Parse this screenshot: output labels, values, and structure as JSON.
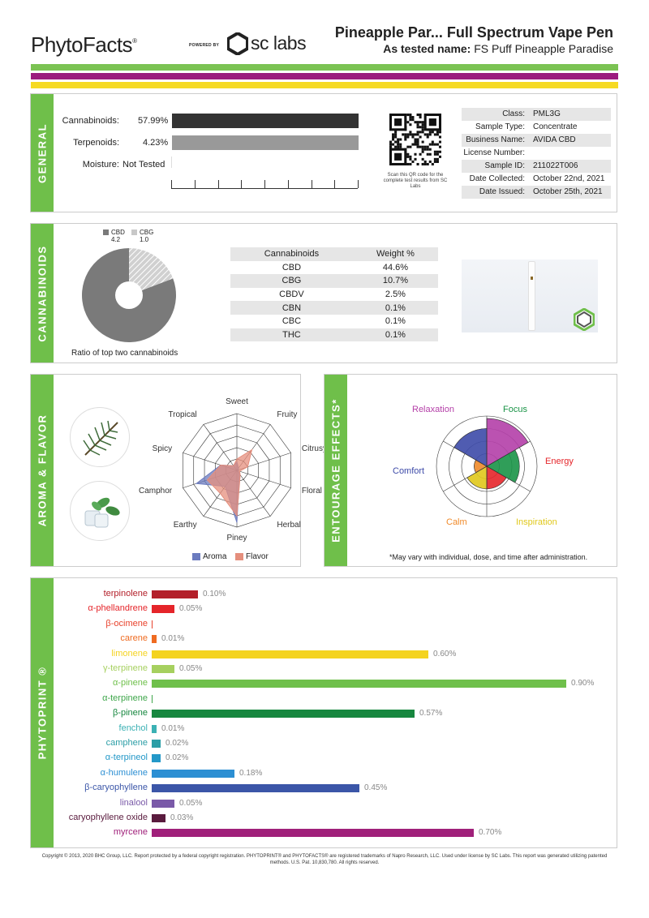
{
  "header": {
    "brand": "PhytoFacts",
    "powered_by": "POWERED BY",
    "lab": "sc labs",
    "product_title": "Pineapple Par... Full Spectrum Vape Pen",
    "tested_label": "As tested name:",
    "tested_name": "FS Puff Pineapple Paradise"
  },
  "general": {
    "tab": "GENERAL",
    "rows": [
      {
        "label": "Cannabinoids:",
        "value": "57.99%",
        "fraction": 0.5799
      },
      {
        "label": "Terpenoids:",
        "value": "4.23%",
        "fraction": 0.0423
      },
      {
        "label": "Moisture:",
        "value": "Not Tested"
      }
    ],
    "qr_caption": "Scan this QR code for the complete test results from SC Labs",
    "info": [
      {
        "k": "Class:",
        "v": "PML3G"
      },
      {
        "k": "Sample Type:",
        "v": "Concentrate"
      },
      {
        "k": "Business Name:",
        "v": "AVIDA CBD"
      },
      {
        "k": "License Number:",
        "v": ""
      },
      {
        "k": "Sample ID:",
        "v": "211022T006"
      },
      {
        "k": "Date Collected:",
        "v": "October 22nd, 2021"
      },
      {
        "k": "Date Issued:",
        "v": "October 25th, 2021"
      }
    ]
  },
  "cannabinoids": {
    "tab": "CANNABINOIDS",
    "pie": {
      "caption": "Ratio of top two cannabinoids",
      "slices": [
        {
          "name": "CBD",
          "value": "4.2",
          "color": "#7a7a7a"
        },
        {
          "name": "CBG",
          "value": "1.0",
          "color": "#c8c8c8"
        }
      ]
    },
    "table": {
      "headers": [
        "Cannabinoids",
        "Weight %"
      ],
      "rows": [
        [
          "CBD",
          "44.6%"
        ],
        [
          "CBG",
          "10.7%"
        ],
        [
          "CBDV",
          "2.5%"
        ],
        [
          "CBN",
          "0.1%"
        ],
        [
          "CBC",
          "0.1%"
        ],
        [
          "THC",
          "0.1%"
        ]
      ]
    }
  },
  "aroma": {
    "tab": "AROMA & FLAVOR",
    "icons": [
      "pine-branch-icon",
      "mint-leaf-icon"
    ],
    "axes": [
      "Sweet",
      "Fruity",
      "Citrusy",
      "Floral",
      "Herbal",
      "Piney",
      "Earthy",
      "Camphor",
      "Spicy",
      "Tropical"
    ],
    "aroma_values": [
      0.15,
      0.05,
      0.03,
      0.02,
      0.08,
      0.92,
      0.35,
      0.75,
      0.3,
      0.1
    ],
    "flavor_values": [
      0.2,
      0.45,
      0.2,
      0.05,
      0.1,
      0.8,
      0.5,
      0.55,
      0.3,
      0.1
    ],
    "legend": [
      {
        "name": "Aroma",
        "color": "#6b7bbf"
      },
      {
        "name": "Flavor",
        "color": "#e58f7d"
      }
    ]
  },
  "entourage": {
    "tab": "ENTOURAGE EFFECTS*",
    "effects": [
      {
        "name": "Relaxation",
        "color": "#b43fa8",
        "level": 0.95
      },
      {
        "name": "Focus",
        "color": "#1a9447",
        "level": 0.65
      },
      {
        "name": "Energy",
        "color": "#e5252a",
        "level": 0.45
      },
      {
        "name": "Inspiration",
        "color": "#e0c81b",
        "level": 0.45
      },
      {
        "name": "Calm",
        "color": "#f08a2a",
        "level": 0.25
      },
      {
        "name": "Comfort",
        "color": "#3d4aa8",
        "level": 0.75
      }
    ],
    "note": "*May vary with individual, dose, and time after administration."
  },
  "phytoprint": {
    "tab": "PHYTOPRINT ®",
    "scale_max": 0.9,
    "terpenes": [
      {
        "name": "terpinolene",
        "value": 0.1,
        "label": "0.10%",
        "color": "#b3202a"
      },
      {
        "name": "α-phellandrene",
        "value": 0.05,
        "label": "0.05%",
        "color": "#e5252a"
      },
      {
        "name": "β-ocimene",
        "value": 0.0,
        "label": "",
        "color": "#e8422c"
      },
      {
        "name": "carene",
        "value": 0.01,
        "label": "0.01%",
        "color": "#ef6b21"
      },
      {
        "name": "limonene",
        "value": 0.6,
        "label": "0.60%",
        "color": "#f4d31f"
      },
      {
        "name": "γ-terpinene",
        "value": 0.05,
        "label": "0.05%",
        "color": "#a6d05f"
      },
      {
        "name": "α-pinene",
        "value": 0.9,
        "label": "0.90%",
        "color": "#6fc04b"
      },
      {
        "name": "α-terpinene",
        "value": 0.0,
        "label": "",
        "color": "#3ea64a"
      },
      {
        "name": "β-pinene",
        "value": 0.57,
        "label": "0.57%",
        "color": "#17873f"
      },
      {
        "name": "fenchol",
        "value": 0.01,
        "label": "0.01%",
        "color": "#3bb1b4"
      },
      {
        "name": "camphene",
        "value": 0.02,
        "label": "0.02%",
        "color": "#2c9ea6"
      },
      {
        "name": "α-terpineol",
        "value": 0.02,
        "label": "0.02%",
        "color": "#2398c8"
      },
      {
        "name": "α-humulene",
        "value": 0.18,
        "label": "0.18%",
        "color": "#2c8fd3"
      },
      {
        "name": "β-caryophyllene",
        "value": 0.45,
        "label": "0.45%",
        "color": "#3b56a8"
      },
      {
        "name": "linalool",
        "value": 0.05,
        "label": "0.05%",
        "color": "#7a5aa8"
      },
      {
        "name": "caryophyllene oxide",
        "value": 0.03,
        "label": "0.03%",
        "color": "#5a1b3e"
      },
      {
        "name": "myrcene",
        "value": 0.7,
        "label": "0.70%",
        "color": "#a0207a"
      }
    ]
  },
  "footer": {
    "copyright": "Copyright © 2013, 2020 BHC Group, LLC. Report protected by a federal copyright registration. PHYTOPRINT® and PHYTOFACTS® are registered trademarks of Napro Research, LLC. Used under license by SC Labs. This report was generated utilizing patented methods. U.S. Pat. 10,830,780. All rights reserved."
  }
}
